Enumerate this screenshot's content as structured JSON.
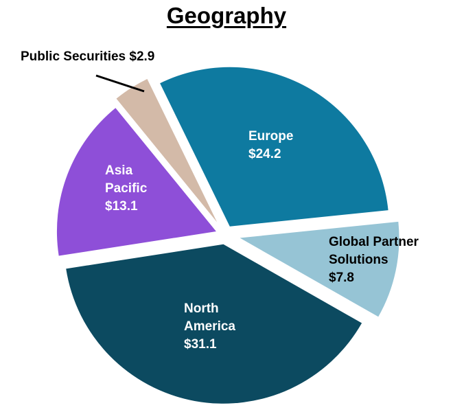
{
  "title": "Geography",
  "chart_data": {
    "type": "pie",
    "title": "Geography",
    "exploded": true,
    "categories": [
      "Europe",
      "Global Partner Solutions",
      "North America",
      "Asia Pacific",
      "Public Securities"
    ],
    "values": [
      24.2,
      7.8,
      31.1,
      13.1,
      2.9
    ],
    "value_prefix": "$",
    "colors": [
      "#0e7aa0",
      "#96c4d5",
      "#0c4a60",
      "#8e4fd8",
      "#d3baa8"
    ],
    "labels": [
      {
        "lines": [
          "Europe",
          "$24.2"
        ],
        "color": "#ffffff"
      },
      {
        "lines": [
          "Global Partner",
          "Solutions",
          "$7.8"
        ],
        "color": "#000000"
      },
      {
        "lines": [
          "North",
          "America",
          "$31.1"
        ],
        "color": "#ffffff"
      },
      {
        "lines": [
          "Asia",
          "Pacific",
          "$13.1"
        ],
        "color": "#ffffff"
      },
      {
        "lines": [
          "Public Securities $2.9"
        ],
        "color": "#000000",
        "leader_line": true
      }
    ]
  }
}
